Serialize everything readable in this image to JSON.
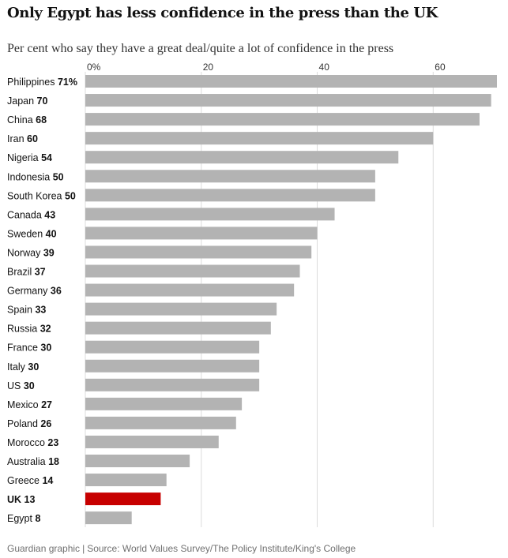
{
  "title": "Only Egypt has less confidence in the press than the UK",
  "subtitle": "Per cent who say they have a great deal/quite a lot of confidence in the press",
  "footer": {
    "credit": "Guardian graphic",
    "separator": "|",
    "source": "Source: World Values Survey/The Policy Institute/King's College"
  },
  "colors": {
    "bar": "#b3b3b3",
    "highlight": "#c70000",
    "gridline": "#dcdcdc",
    "text": "#121212",
    "muted": "#707070"
  },
  "chart_data": {
    "type": "bar",
    "orientation": "horizontal",
    "title": "Only Egypt has less confidence in the press than the UK",
    "subtitle": "Per cent who say they have a great deal/quite a lot of confidence in the press",
    "xlim": [
      0,
      71
    ],
    "ticks": [
      {
        "value": 0,
        "label": "0%"
      },
      {
        "value": 20,
        "label": "20"
      },
      {
        "value": 40,
        "label": "40"
      },
      {
        "value": 60,
        "label": "60"
      }
    ],
    "grid": true,
    "highlight": "UK",
    "categories": [
      "Philippines",
      "Japan",
      "China",
      "Iran",
      "Nigeria",
      "Indonesia",
      "South Korea",
      "Canada",
      "Sweden",
      "Norway",
      "Brazil",
      "Germany",
      "Spain",
      "Russia",
      "France",
      "Italy",
      "US",
      "Mexico",
      "Poland",
      "Morocco",
      "Australia",
      "Greece",
      "UK",
      "Egypt"
    ],
    "values": [
      71,
      70,
      68,
      60,
      54,
      50,
      50,
      43,
      40,
      39,
      37,
      36,
      33,
      32,
      30,
      30,
      30,
      27,
      26,
      23,
      18,
      14,
      13,
      8
    ],
    "value_labels": [
      "71%",
      "70",
      "68",
      "60",
      "54",
      "50",
      "50",
      "43",
      "40",
      "39",
      "37",
      "36",
      "33",
      "32",
      "30",
      "30",
      "30",
      "27",
      "26",
      "23",
      "18",
      "14",
      "13",
      "8"
    ]
  }
}
